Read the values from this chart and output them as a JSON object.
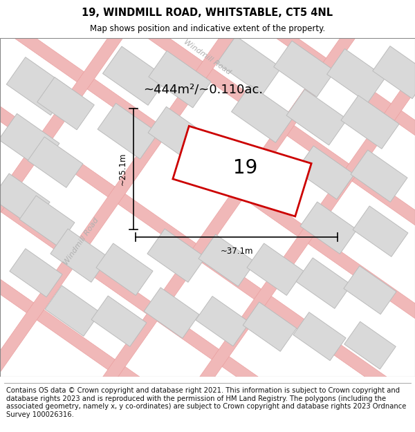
{
  "title": "19, WINDMILL ROAD, WHITSTABLE, CT5 4NL",
  "subtitle": "Map shows position and indicative extent of the property.",
  "area_text": "~444m²/~0.110ac.",
  "plot_number": "19",
  "width_label": "~37.1m",
  "height_label": "~25.1m",
  "footer_text": "Contains OS data © Crown copyright and database right 2021. This information is subject to Crown copyright and database rights 2023 and is reproduced with the permission of HM Land Registry. The polygons (including the associated geometry, namely x, y co-ordinates) are subject to Crown copyright and database rights 2023 Ordnance Survey 100026316.",
  "map_bg": "#f7f7f7",
  "road_color": "#f0b8b8",
  "road_edge": "#e89898",
  "building_color": "#d9d9d9",
  "building_edge": "#bbbbbb",
  "plot_color": "#cc0000",
  "plot_fill": "#ffffff",
  "road_label_color": "#b0b0b0",
  "title_fontsize": 10.5,
  "subtitle_fontsize": 8.5,
  "area_fontsize": 13,
  "plot_num_fontsize": 20,
  "footer_fontsize": 7.2,
  "road_label_fontsize": 8,
  "dim_fontsize": 8.5
}
